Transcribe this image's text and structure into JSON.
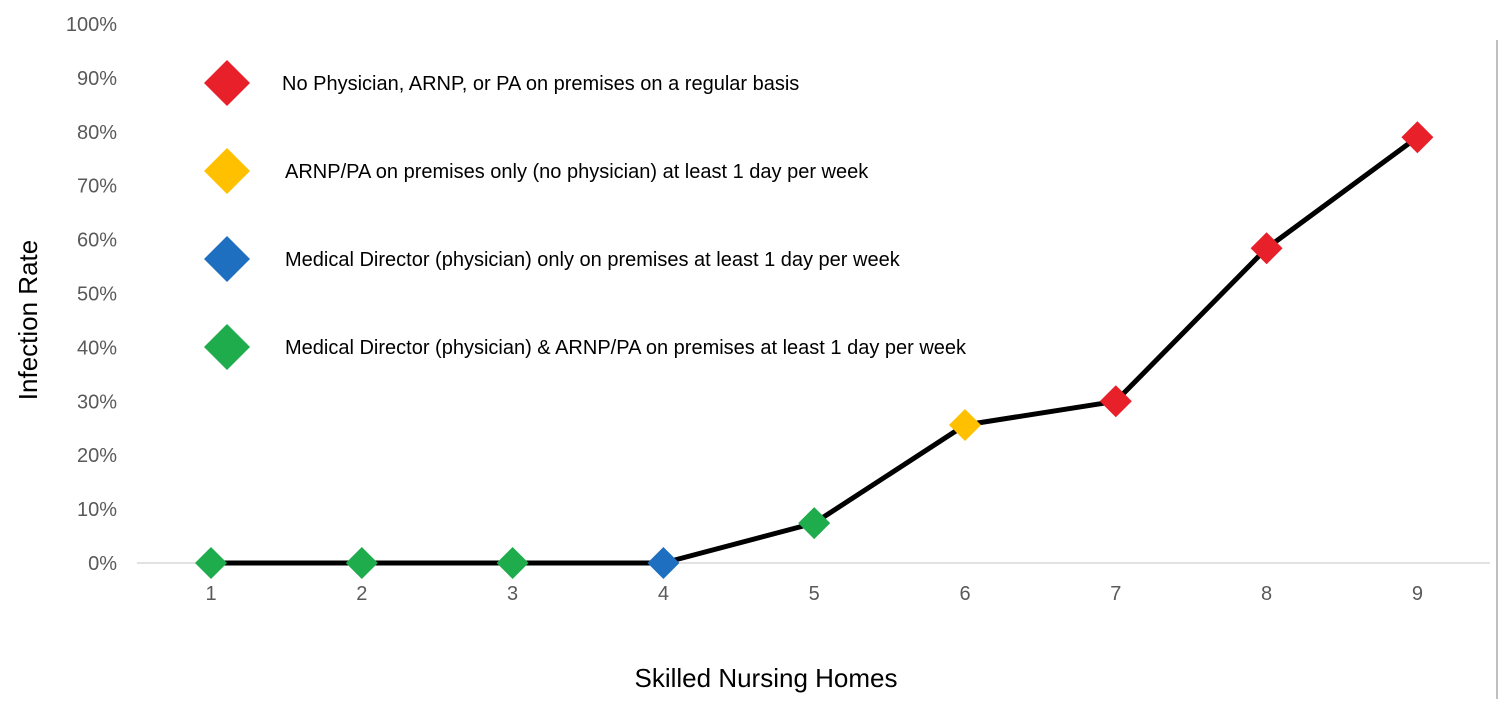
{
  "chart_data": {
    "type": "line",
    "xlabel": "Skilled Nursing Homes",
    "ylabel": "Infection Rate",
    "x": [
      1,
      2,
      3,
      4,
      5,
      6,
      7,
      8,
      9
    ],
    "y": [
      0,
      0,
      0,
      0,
      7.4,
      25.6,
      30.0,
      58.4,
      79.0
    ],
    "y_unit": "%",
    "ylim": [
      0,
      100
    ],
    "y_ticks": [
      "0%",
      "10%",
      "20%",
      "30%",
      "40%",
      "50%",
      "60%",
      "70%",
      "80%",
      "90%",
      "100%"
    ],
    "x_ticks": [
      "1",
      "2",
      "3",
      "4",
      "5",
      "6",
      "7",
      "8",
      "9"
    ],
    "grid": false,
    "line_color": "#000000",
    "marker": "diamond",
    "point_categories": [
      "physician_and_arnp",
      "physician_and_arnp",
      "physician_and_arnp",
      "physician_only",
      "physician_and_arnp",
      "arnp_only",
      "none",
      "none",
      "none"
    ],
    "legend_placement": "top-left",
    "legend": [
      {
        "key": "none",
        "label": "No Physician, ARNP, or PA on premises on a regular basis",
        "color": "#e8202a"
      },
      {
        "key": "arnp_only",
        "label": "ARNP/PA on premises only (no physician) at least 1 day per week",
        "color": "#ffc000"
      },
      {
        "key": "physician_only",
        "label": "Medical Director (physician) only on premises at least 1 day per week",
        "color": "#1f6fc0"
      },
      {
        "key": "physician_and_arnp",
        "label": "Medical Director (physician) & ARNP/PA on premises at least 1 day per week",
        "color": "#1fac4c"
      }
    ]
  }
}
